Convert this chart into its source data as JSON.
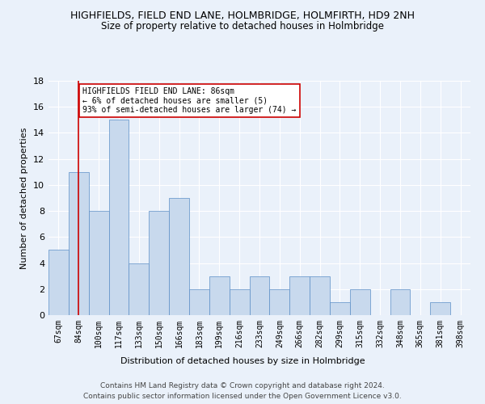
{
  "title": "HIGHFIELDS, FIELD END LANE, HOLMBRIDGE, HOLMFIRTH, HD9 2NH",
  "subtitle": "Size of property relative to detached houses in Holmbridge",
  "xlabel": "Distribution of detached houses by size in Holmbridge",
  "ylabel": "Number of detached properties",
  "categories": [
    "67sqm",
    "84sqm",
    "100sqm",
    "117sqm",
    "133sqm",
    "150sqm",
    "166sqm",
    "183sqm",
    "199sqm",
    "216sqm",
    "233sqm",
    "249sqm",
    "266sqm",
    "282sqm",
    "299sqm",
    "315sqm",
    "332sqm",
    "348sqm",
    "365sqm",
    "381sqm",
    "398sqm"
  ],
  "values": [
    5,
    11,
    8,
    15,
    4,
    8,
    9,
    2,
    3,
    2,
    3,
    2,
    3,
    3,
    1,
    2,
    0,
    2,
    0,
    1,
    0
  ],
  "bar_color": "#c8d9ed",
  "bar_edge_color": "#5b8fc7",
  "property_line_x": 1,
  "ylim": [
    0,
    18
  ],
  "yticks": [
    0,
    2,
    4,
    6,
    8,
    10,
    12,
    14,
    16,
    18
  ],
  "annotation_box_text": "HIGHFIELDS FIELD END LANE: 86sqm\n← 6% of detached houses are smaller (5)\n93% of semi-detached houses are larger (74) →",
  "footer_line1": "Contains HM Land Registry data © Crown copyright and database right 2024.",
  "footer_line2": "Contains public sector information licensed under the Open Government Licence v3.0.",
  "bg_color": "#eaf1fa",
  "grid_color": "#ffffff",
  "annotation_line_color": "#cc0000"
}
